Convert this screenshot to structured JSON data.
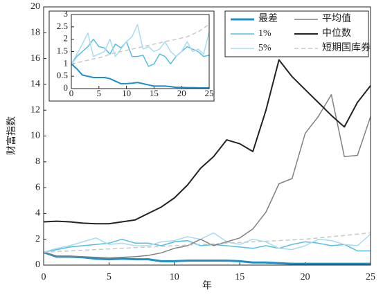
{
  "chart_data": [
    {
      "type": "line",
      "xlabel": "年",
      "ylabel": "财富指数",
      "legend": "upper right",
      "x": [
        0,
        1,
        2,
        3,
        4,
        5,
        6,
        7,
        8,
        9,
        10,
        11,
        12,
        13,
        14,
        15,
        16,
        17,
        18,
        19,
        20,
        21,
        22,
        23,
        24,
        25
      ],
      "xlim": [
        0,
        25
      ],
      "xticks": [
        0,
        5,
        10,
        15,
        20,
        25
      ],
      "ylim": [
        0,
        20
      ],
      "yticks": [
        0,
        2,
        4,
        6,
        8,
        10,
        12,
        14,
        16,
        18,
        20
      ],
      "series": [
        {
          "name": "最差",
          "color": "#1a8fc9",
          "linewidth": 3,
          "dashed": false,
          "values": [
            1,
            0.65,
            0.65,
            0.6,
            0.5,
            0.45,
            0.5,
            0.45,
            0.45,
            0.3,
            0.3,
            0.35,
            0.35,
            0.35,
            0.35,
            0.3,
            0.2,
            0.2,
            0.15,
            0.1,
            0.1,
            0.1,
            0.1,
            0.1,
            0.1,
            0.1
          ]
        },
        {
          "name": "1%",
          "color": "#55bde3",
          "linewidth": 1.5,
          "dashed": false,
          "values": [
            1,
            1.2,
            1.4,
            1.5,
            1.6,
            1.7,
            2.0,
            1.7,
            1.7,
            1.5,
            1.8,
            1.9,
            1.5,
            1.6,
            1.5,
            1.4,
            1.3,
            1.5,
            1.3,
            1.6,
            1.8,
            1.7,
            1.5,
            1.6,
            1.1,
            1.1
          ]
        },
        {
          "name": "5%",
          "color": "#a6dcf0",
          "linewidth": 1.5,
          "dashed": false,
          "values": [
            1,
            1.3,
            1.5,
            1.8,
            2.1,
            1.6,
            1.7,
            1.5,
            1.5,
            1.8,
            1.9,
            2.2,
            2.0,
            2.5,
            1.8,
            1.6,
            2.0,
            1.8,
            1.3,
            1.2,
            1.5,
            2.0,
            1.9,
            1.6,
            1.5,
            2.4
          ]
        },
        {
          "name": "平均值",
          "color": "#808080",
          "linewidth": 1.5,
          "dashed": false,
          "values": [
            1,
            0.7,
            0.7,
            0.65,
            0.6,
            0.55,
            0.6,
            0.65,
            0.75,
            0.95,
            1.3,
            1.5,
            2.0,
            1.5,
            1.8,
            2.1,
            2.8,
            4.1,
            6.3,
            6.7,
            10.2,
            11.5,
            13.2,
            8.4,
            8.5,
            11.5
          ]
        },
        {
          "name": "中位数",
          "color": "#222222",
          "linewidth": 2,
          "dashed": false,
          "values": [
            3.35,
            3.4,
            3.35,
            3.25,
            3.2,
            3.2,
            3.35,
            3.5,
            4.0,
            4.5,
            5.2,
            6.2,
            7.5,
            8.4,
            9.7,
            9.4,
            8.8,
            12.0,
            15.9,
            14.6,
            13.6,
            12.6,
            11.6,
            10.7,
            12.6,
            13.9
          ]
        },
        {
          "name": "短期国库券",
          "color": "#c8c8c8",
          "linewidth": 1.5,
          "dashed": true,
          "values": [
            1,
            1.05,
            1.1,
            1.15,
            1.2,
            1.25,
            1.3,
            1.35,
            1.4,
            1.45,
            1.5,
            1.55,
            1.6,
            1.65,
            1.7,
            1.75,
            1.8,
            1.85,
            1.9,
            1.95,
            2.0,
            2.1,
            2.2,
            2.3,
            2.4,
            2.5
          ]
        }
      ]
    },
    {
      "type": "line",
      "x": [
        0,
        1,
        2,
        3,
        4,
        5,
        6,
        7,
        8,
        9,
        10,
        11,
        12,
        13,
        14,
        15,
        16,
        17,
        18,
        19,
        20,
        21,
        22,
        23,
        24,
        25
      ],
      "xlim": [
        0,
        25
      ],
      "xticks": [
        0,
        5,
        10,
        15,
        20,
        25
      ],
      "ylim": [
        0,
        3
      ],
      "yticks": [
        0,
        0.5,
        1,
        1.5,
        2,
        2.5,
        3
      ],
      "series": [
        {
          "name": "最差",
          "color": "#1a8fc9",
          "linewidth": 2,
          "dashed": false,
          "values": [
            1,
            0.8,
            0.55,
            0.5,
            0.45,
            0.45,
            0.45,
            0.4,
            0.3,
            0.2,
            0.2,
            0.22,
            0.25,
            0.2,
            0.15,
            0.1,
            0.1,
            0.1,
            0.08,
            0.05,
            0.05,
            0.04,
            0.04,
            0.03,
            0.03,
            0.03
          ]
        },
        {
          "name": "1%",
          "color": "#55bde3",
          "linewidth": 1.5,
          "dashed": false,
          "values": [
            1,
            1.3,
            1.5,
            1.7,
            2.0,
            1.7,
            1.65,
            1.4,
            1.8,
            1.65,
            1.9,
            1.3,
            1.3,
            1.35,
            0.9,
            1.0,
            1.4,
            1.3,
            1.0,
            1.3,
            1.5,
            1.7,
            1.6,
            1.5,
            1.3,
            1.35
          ]
        },
        {
          "name": "5%",
          "color": "#a6dcf0",
          "linewidth": 1.5,
          "dashed": false,
          "values": [
            1,
            1.4,
            1.8,
            2.25,
            1.3,
            1.4,
            1.5,
            2.0,
            1.3,
            1.6,
            1.9,
            2.1,
            2.6,
            1.6,
            1.7,
            1.5,
            1.6,
            1.9,
            1.5,
            1.3,
            1.5,
            1.9,
            1.5,
            1.6,
            1.4,
            2.3
          ]
        },
        {
          "name": "短期国库券",
          "color": "#c8c8c8",
          "linewidth": 1.5,
          "dashed": true,
          "values": [
            1,
            1.05,
            1.1,
            1.15,
            1.2,
            1.25,
            1.3,
            1.4,
            1.45,
            1.5,
            1.55,
            1.6,
            1.65,
            1.7,
            1.75,
            1.8,
            1.85,
            1.9,
            1.95,
            2.0,
            2.05,
            2.1,
            2.2,
            2.3,
            2.45,
            2.6
          ]
        }
      ]
    }
  ]
}
